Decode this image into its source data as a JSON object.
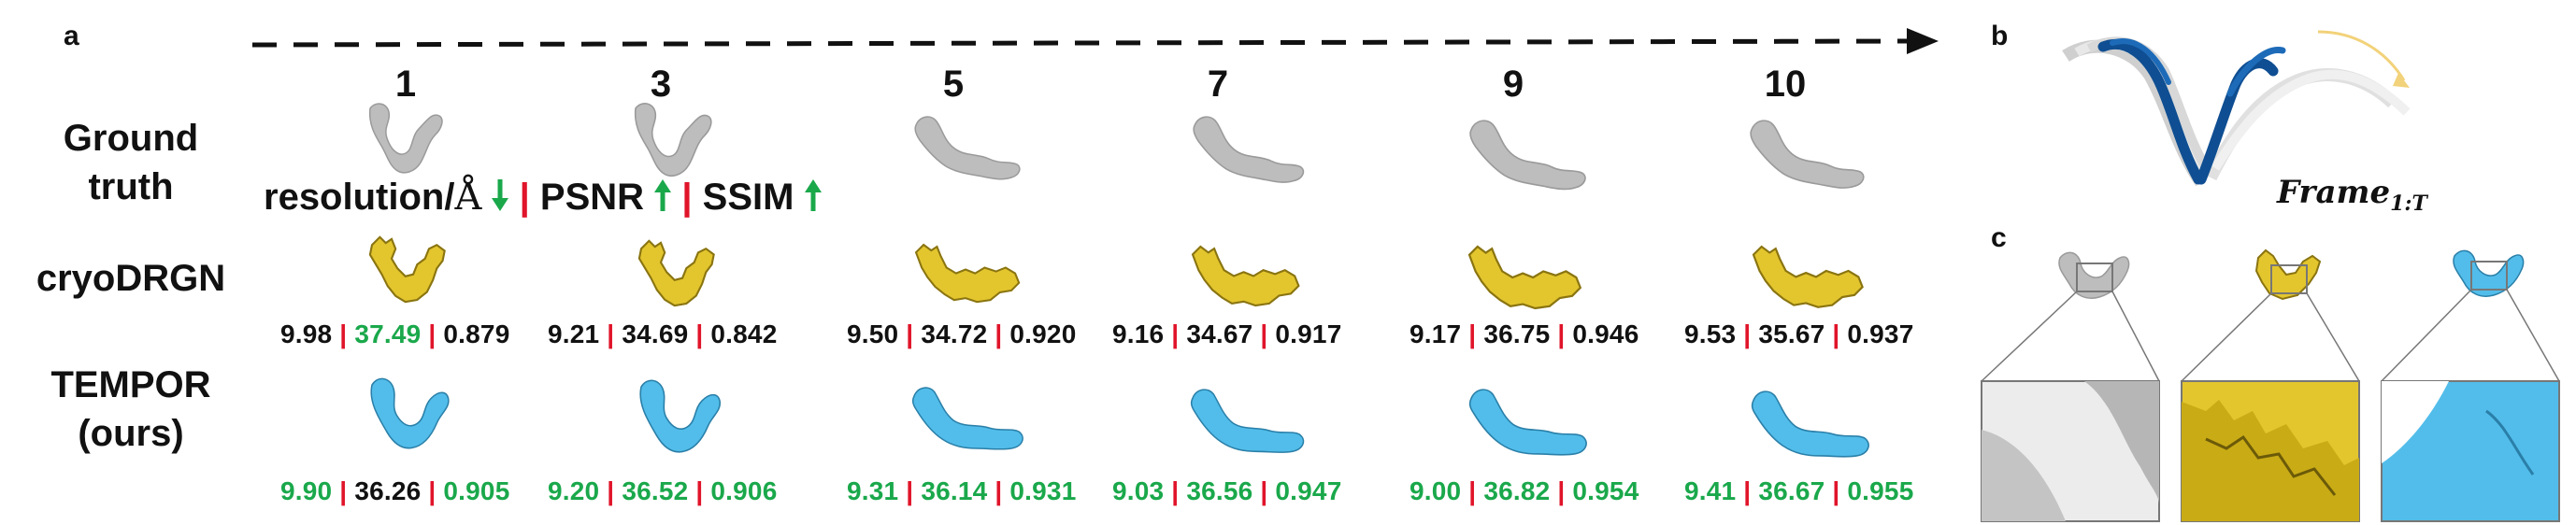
{
  "panels": {
    "a": "a",
    "b": "b",
    "c": "c"
  },
  "frames": [
    "1",
    "3",
    "5",
    "7",
    "9",
    "10"
  ],
  "rows": {
    "ground_truth": [
      "Ground",
      "truth"
    ],
    "cryodrgn": "cryoDRGN",
    "tempor": [
      "TEMPOR",
      "(ours)"
    ]
  },
  "legend": {
    "resolution": "resolution/",
    "angstrom": "Å",
    "psnr": "PSNR",
    "ssim": "SSIM",
    "separator": "|"
  },
  "metrics": {
    "cryodrgn": [
      {
        "res": "9.98",
        "psnr": "37.49",
        "ssim": "0.879"
      },
      {
        "res": "9.21",
        "psnr": "34.69",
        "ssim": "0.842"
      },
      {
        "res": "9.50",
        "psnr": "34.72",
        "ssim": "0.920"
      },
      {
        "res": "9.16",
        "psnr": "34.67",
        "ssim": "0.917"
      },
      {
        "res": "9.17",
        "psnr": "36.75",
        "ssim": "0.946"
      },
      {
        "res": "9.53",
        "psnr": "35.67",
        "ssim": "0.937"
      }
    ],
    "tempor": [
      {
        "res": "9.90",
        "psnr": "36.26",
        "ssim": "0.905"
      },
      {
        "res": "9.20",
        "psnr": "36.52",
        "ssim": "0.906"
      },
      {
        "res": "9.31",
        "psnr": "36.14",
        "ssim": "0.931"
      },
      {
        "res": "9.03",
        "psnr": "36.56",
        "ssim": "0.947"
      },
      {
        "res": "9.00",
        "psnr": "36.82",
        "ssim": "0.954"
      },
      {
        "res": "9.41",
        "psnr": "36.67",
        "ssim": "0.955"
      }
    ],
    "best": {
      "cryodrgn": [
        {
          "res": false,
          "psnr": true,
          "ssim": false
        },
        {
          "res": false,
          "psnr": false,
          "ssim": false
        },
        {
          "res": false,
          "psnr": false,
          "ssim": false
        },
        {
          "res": false,
          "psnr": false,
          "ssim": false
        },
        {
          "res": false,
          "psnr": false,
          "ssim": false
        },
        {
          "res": false,
          "psnr": false,
          "ssim": false
        }
      ],
      "tempor": [
        {
          "res": true,
          "psnr": false,
          "ssim": true
        },
        {
          "res": true,
          "psnr": true,
          "ssim": true
        },
        {
          "res": true,
          "psnr": true,
          "ssim": true
        },
        {
          "res": true,
          "psnr": true,
          "ssim": true
        },
        {
          "res": true,
          "psnr": true,
          "ssim": true
        },
        {
          "res": true,
          "psnr": true,
          "ssim": true
        }
      ]
    }
  },
  "frame_formula": {
    "base": "Frame",
    "sub": "1:T"
  },
  "colors": {
    "ground_truth": "#bdbdbd",
    "cryodrgn": "#e3c62e",
    "tempor": "#52bdea",
    "best": "#1aa84b",
    "separator": "#e0142a",
    "ribbon_blue": "#0f4e92",
    "ribbon_white": "#e8e8e8",
    "motion_arrow": "#f2d27a"
  }
}
